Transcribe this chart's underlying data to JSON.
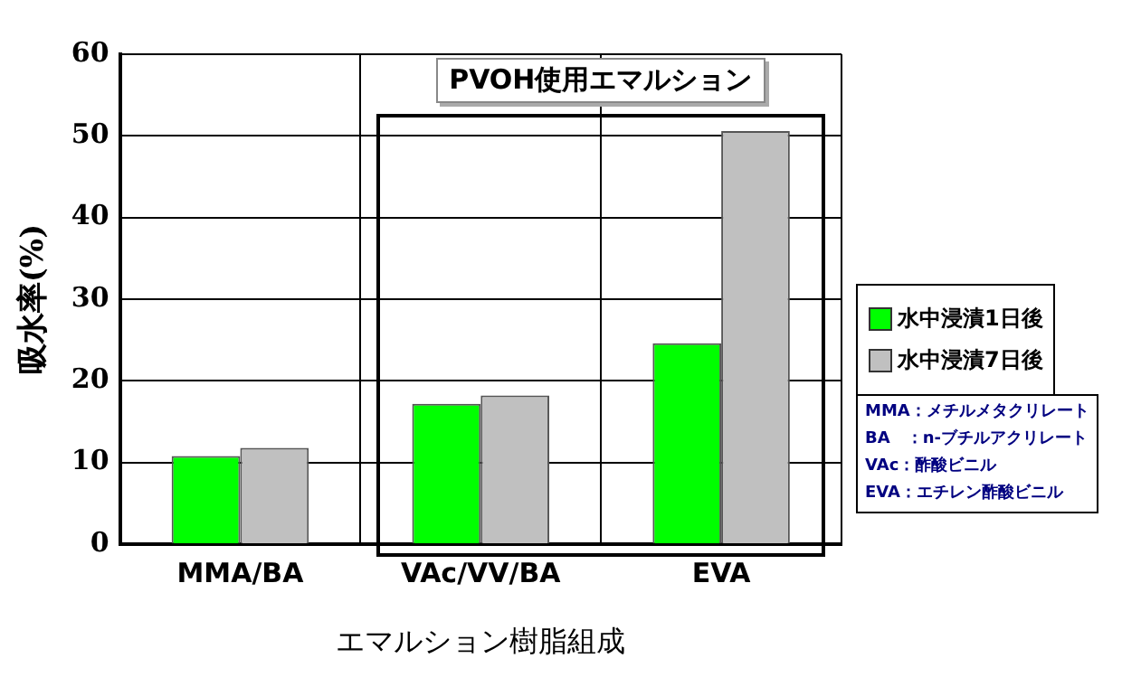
{
  "chart_data": {
    "type": "bar",
    "categories": [
      "MMA/BA",
      "VAc/VV/BA",
      "EVA"
    ],
    "series": [
      {
        "name": "水中浸漬1日後",
        "color": "#00ff00",
        "values": [
          10.8,
          17.2,
          24.6
        ]
      },
      {
        "name": "水中浸漬7日後",
        "color": "#c0c0c0",
        "values": [
          11.8,
          18.2,
          50.6
        ]
      }
    ],
    "xlabel": "エマルション樹脂組成",
    "ylabel": "吸水率(%)",
    "ylim": [
      0,
      60
    ],
    "yticks": [
      0,
      10,
      20,
      30,
      40,
      50,
      60
    ],
    "grid": true,
    "legend": "right",
    "annotations": [
      "PVOH使用エマルション",
      "MMA：メチルメタクリレート",
      "BA　：n-ブチルアクリレート",
      "VAc：酢酸ビニル",
      "EVA：エチレン酢酸ビニル"
    ]
  }
}
